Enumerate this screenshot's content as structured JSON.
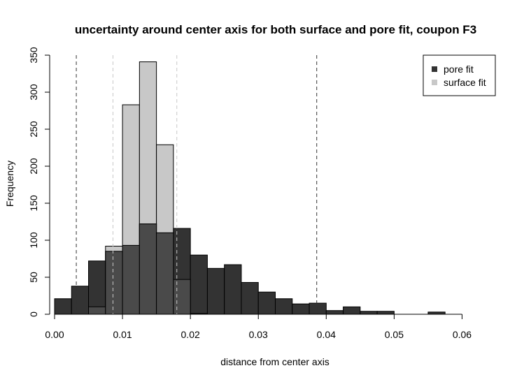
{
  "chart_data": {
    "type": "bar",
    "title": "uncertainty around center axis for both surface and pore fit, coupon F3",
    "xlabel": "distance from center axis",
    "ylabel": "Frequency",
    "xlim": [
      0.0,
      0.065
    ],
    "ylim": [
      0,
      350
    ],
    "x_ticks": [
      0.0,
      0.01,
      0.02,
      0.03,
      0.04,
      0.05,
      0.06
    ],
    "x_tick_labels": [
      "0.00",
      "0.01",
      "0.02",
      "0.03",
      "0.04",
      "0.05",
      "0.06"
    ],
    "y_ticks": [
      0,
      50,
      100,
      150,
      200,
      250,
      300,
      350
    ],
    "y_tick_labels": [
      "0",
      "50",
      "100",
      "150",
      "200",
      "250",
      "300",
      "350"
    ],
    "bin_width": 0.0025,
    "legend_position": "top-right",
    "grid": false,
    "series": [
      {
        "name": "surface fit",
        "color": "#c8c8c8",
        "bins": [
          {
            "x0": 0.005,
            "value": 10
          },
          {
            "x0": 0.0075,
            "value": 92
          },
          {
            "x0": 0.01,
            "value": 283
          },
          {
            "x0": 0.0125,
            "value": 341
          },
          {
            "x0": 0.015,
            "value": 229
          },
          {
            "x0": 0.0175,
            "value": 47
          },
          {
            "x0": 0.02,
            "value": 1
          }
        ]
      },
      {
        "name": "pore fit",
        "color": "#333333",
        "bins": [
          {
            "x0": 0.0,
            "value": 21
          },
          {
            "x0": 0.0025,
            "value": 38
          },
          {
            "x0": 0.005,
            "value": 72
          },
          {
            "x0": 0.0075,
            "value": 85
          },
          {
            "x0": 0.01,
            "value": 93
          },
          {
            "x0": 0.0125,
            "value": 122
          },
          {
            "x0": 0.015,
            "value": 110
          },
          {
            "x0": 0.0175,
            "value": 116
          },
          {
            "x0": 0.02,
            "value": 80
          },
          {
            "x0": 0.0225,
            "value": 62
          },
          {
            "x0": 0.025,
            "value": 67
          },
          {
            "x0": 0.0275,
            "value": 43
          },
          {
            "x0": 0.03,
            "value": 30
          },
          {
            "x0": 0.0325,
            "value": 21
          },
          {
            "x0": 0.035,
            "value": 14
          },
          {
            "x0": 0.0375,
            "value": 15
          },
          {
            "x0": 0.04,
            "value": 5
          },
          {
            "x0": 0.0425,
            "value": 10
          },
          {
            "x0": 0.045,
            "value": 4
          },
          {
            "x0": 0.0475,
            "value": 4
          },
          {
            "x0": 0.055,
            "value": 3
          }
        ]
      }
    ],
    "overlap_color": "#4a4a4a",
    "reference_lines": [
      {
        "x": 0.0032,
        "color": "#333333",
        "style": "dashed"
      },
      {
        "x": 0.0386,
        "color": "#333333",
        "style": "dashed"
      },
      {
        "x": 0.0086,
        "color": "#c8c8c8",
        "style": "dashed"
      },
      {
        "x": 0.018,
        "color": "#c8c8c8",
        "style": "dashed"
      }
    ]
  }
}
